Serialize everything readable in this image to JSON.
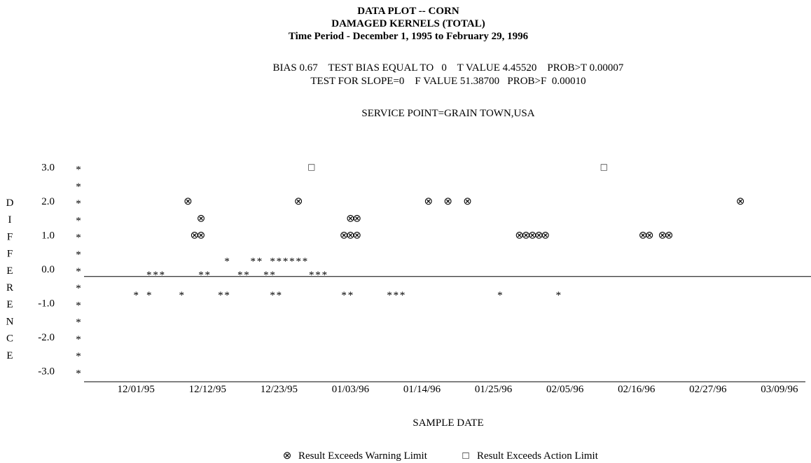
{
  "chart_data": {
    "type": "scatter",
    "title": [
      "DATA PLOT -- CORN",
      "DAMAGED KERNELS (TOTAL)",
      "Time Period - December 1, 1995 to February 29, 1996"
    ],
    "subtitle": [
      "BIAS 0.67    TEST BIAS EQUAL TO   0    T VALUE 4.45520    PROB>T 0.00007",
      "TEST FOR SLOPE=0    F VALUE 51.38700   PROB>F  0.00010",
      "SERVICE POINT=GRAIN TOWN,USA"
    ],
    "xlabel": "SAMPLE DATE",
    "ylabel": "DIFFERENCE",
    "xlim": [
      "1995-11-23",
      "1996-03-13"
    ],
    "xticks": [
      {
        "value": "1995-12-01",
        "label": "12/01/95"
      },
      {
        "value": "1995-12-12",
        "label": "12/12/95"
      },
      {
        "value": "1995-12-23",
        "label": "12/23/95"
      },
      {
        "value": "1996-01-03",
        "label": "01/03/96"
      },
      {
        "value": "1996-01-14",
        "label": "01/14/96"
      },
      {
        "value": "1996-01-25",
        "label": "01/25/96"
      },
      {
        "value": "1996-02-05",
        "label": "02/05/96"
      },
      {
        "value": "1996-02-16",
        "label": "02/16/96"
      },
      {
        "value": "1996-02-27",
        "label": "02/27/96"
      },
      {
        "value": "1996-03-09",
        "label": "03/09/96"
      }
    ],
    "ylim": [
      -3.3,
      3.3
    ],
    "yticks": [
      {
        "value": 3,
        "label": "3.0"
      },
      {
        "value": 2,
        "label": "2.0"
      },
      {
        "value": 1,
        "label": "1.0"
      },
      {
        "value": 0,
        "label": "0.0"
      },
      {
        "value": -1,
        "label": "-1.0"
      },
      {
        "value": -2,
        "label": "-2.0"
      },
      {
        "value": -3,
        "label": "-3.0"
      }
    ],
    "yticks_minor": [
      2.5,
      1.5,
      0.5,
      -0.5,
      -1.5,
      -2.5
    ],
    "tick_symbol": "*",
    "hline": -0.2,
    "series": [
      {
        "marker": "*",
        "x": [
          "1995-12-01",
          "1995-12-03",
          "1995-12-08",
          "1995-12-14",
          "1995-12-15",
          "1995-12-22",
          "1995-12-23",
          "1996-01-02",
          "1996-01-03",
          "1996-01-09",
          "1996-01-10",
          "1996-01-11",
          "1996-01-26",
          "1996-02-04",
          "1995-12-03",
          "1995-12-04",
          "1995-12-05",
          "1995-12-11",
          "1995-12-12",
          "1995-12-17",
          "1995-12-18",
          "1995-12-21",
          "1995-12-22",
          "1995-12-28",
          "1995-12-29",
          "1995-12-30",
          "1995-12-15",
          "1995-12-19",
          "1995-12-20",
          "1995-12-22",
          "1995-12-23",
          "1995-12-24",
          "1995-12-25",
          "1995-12-26",
          "1995-12-27"
        ],
        "values": [
          -0.7,
          -0.7,
          -0.7,
          -0.7,
          -0.7,
          -0.7,
          -0.7,
          -0.7,
          -0.7,
          -0.7,
          -0.7,
          -0.7,
          -0.7,
          -0.7,
          -0.1,
          -0.1,
          -0.1,
          -0.1,
          -0.1,
          -0.1,
          -0.1,
          -0.1,
          -0.1,
          -0.1,
          -0.1,
          -0.1,
          0.3,
          0.3,
          0.3,
          0.3,
          0.3,
          0.3,
          0.3,
          0.3,
          0.3
        ]
      },
      {
        "name": "Result Exceeds Warning Limit",
        "marker": "⊗",
        "x": [
          "1995-12-09",
          "1995-12-26",
          "1996-01-15",
          "1996-01-18",
          "1996-01-21",
          "1996-03-03",
          "1995-12-11",
          "1996-01-03",
          "1996-01-04",
          "1995-12-10",
          "1995-12-11",
          "1996-01-02",
          "1996-01-03",
          "1996-01-04",
          "1996-01-29",
          "1996-01-30",
          "1996-01-31",
          "1996-02-01",
          "1996-02-02",
          "1996-02-17",
          "1996-02-18",
          "1996-02-20",
          "1996-02-21"
        ],
        "values": [
          2,
          2,
          2,
          2,
          2,
          2,
          1.5,
          1.5,
          1.5,
          1,
          1,
          1,
          1,
          1,
          1,
          1,
          1,
          1,
          1,
          1,
          1,
          1,
          1
        ]
      },
      {
        "name": "Result Exceeds Action Limit",
        "marker": "□",
        "x": [
          "1995-12-28",
          "1996-02-11"
        ],
        "values": [
          3,
          3
        ]
      }
    ]
  }
}
